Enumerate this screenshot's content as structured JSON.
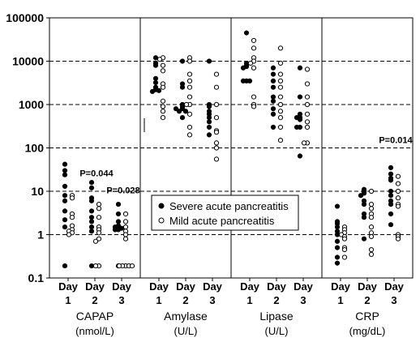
{
  "chart_data": {
    "type": "scatter",
    "y_scale": "log",
    "ylim": [
      0.1,
      100000
    ],
    "y_ticks": [
      "0.1",
      "1",
      "10",
      "100",
      "1000",
      "10000",
      "100000"
    ],
    "grid": "horizontal-dashed",
    "legend_position": "center",
    "legend": [
      {
        "name": "Severe acute pancreatitis",
        "marker": "filled-circle"
      },
      {
        "name": "Mild acute pancreatitis",
        "marker": "open-circle"
      }
    ],
    "day_labels": [
      {
        "top": "Day",
        "num": "1"
      },
      {
        "top": "Day",
        "num": "2"
      },
      {
        "top": "Day",
        "num": "3"
      }
    ],
    "groups": [
      {
        "name": "CAPAP",
        "unit": "(nmol/L)",
        "days": [
          {
            "severe": [
              42,
              30,
              24,
              13,
              8,
              6,
              3.5,
              2.2,
              1.5,
              0.19
            ],
            "mild": [
              8,
              7,
              3,
              2.5,
              1.6,
              1.3,
              1.2,
              1.1,
              1.0
            ]
          },
          {
            "severe": [
              16,
              12,
              7,
              6,
              3.5,
              2.5,
              2,
              1.5,
              1.2,
              0.19
            ],
            "mild": [
              5,
              4,
              2.5,
              1.5,
              1.3,
              1.1,
              0.8,
              0.7,
              0.19,
              0.19
            ]
          },
          {
            "severe": [
              5,
              3,
              2,
              1.6,
              1.5,
              1.4,
              1.3,
              1.3,
              0.19
            ],
            "mild": [
              3,
              2,
              1.5,
              1.2,
              1.0,
              0.8,
              0.19,
              0.19,
              0.19,
              0.19,
              0.19
            ]
          }
        ],
        "annotations": [
          {
            "text": "P=0.044",
            "day": 2,
            "value": 22
          },
          {
            "text": "P=0.028",
            "day": 3,
            "value": 9
          }
        ]
      },
      {
        "name": "Amylase",
        "unit": "(U/L)",
        "days": [
          {
            "severe": [
              12000,
              9000,
              8000,
              4000,
              3200,
              2500,
              2200,
              2000,
              2100
            ],
            "mild": [
              12000,
              11000,
              8000,
              6000,
              3000,
              2500,
              1200,
              900,
              700,
              500
            ]
          },
          {
            "severe": [
              10000,
              3000,
              2500,
              1000,
              900,
              800,
              700,
              700,
              800,
              500
            ],
            "mild": [
              12000,
              10000,
              5000,
              3500,
              2500,
              1500,
              1000,
              1000,
              600,
              300,
              200
            ]
          },
          {
            "severe": [
              10000,
              1000,
              900,
              700,
              600,
              500,
              400,
              300,
              200
            ],
            "mild": [
              5000,
              2500,
              1000,
              500,
              250,
              230,
              130,
              100,
              55
            ]
          }
        ],
        "annotations": []
      },
      {
        "name": "Lipase",
        "unit": "(U/L)",
        "days": [
          {
            "severe": [
              45000,
              9000,
              8000,
              7500,
              7000,
              3500,
              3500,
              3500
            ],
            "mild": [
              30000,
              20000,
              12000,
              10000,
              9000,
              7000,
              1500,
              1000,
              900
            ]
          },
          {
            "severe": [
              7000,
              5000,
              3500,
              2500,
              1500,
              1200,
              800,
              600,
              300
            ],
            "mild": [
              20000,
              9000,
              5000,
              3500,
              2500,
              1500,
              1000,
              700,
              500,
              300,
              150
            ]
          },
          {
            "severe": [
              7000,
              1500,
              600,
              500,
              500,
              450,
              300,
              300,
              65
            ],
            "mild": [
              6500,
              3000,
              1500,
              1000,
              600,
              400,
              300,
              130,
              130
            ]
          }
        ],
        "annotations": []
      },
      {
        "name": "CRP",
        "unit": "(mg/dL)",
        "days": [
          {
            "severe": [
              4.5,
              2,
              1.8,
              1.5,
              1.2,
              1.0,
              0.7,
              0.5,
              0.3,
              0.22
            ],
            "mild": [
              1.5,
              1.3,
              1.1,
              1.0,
              0.9,
              0.8,
              0.5,
              0.45,
              0.3
            ]
          },
          {
            "severe": [
              11,
              10,
              9,
              8,
              6,
              5,
              3,
              2.5,
              0.8
            ],
            "mild": [
              10,
              5,
              4,
              3,
              2.5,
              1.5,
              1.1,
              0.9,
              0.45,
              0.35
            ]
          },
          {
            "severe": [
              35,
              25,
              20,
              18,
              10,
              8,
              6,
              5,
              3,
              1.7
            ],
            "mild": [
              22,
              15,
              10,
              7,
              5,
              4.5,
              1.0,
              0.9,
              0.8
            ]
          }
        ],
        "annotations": [
          {
            "text": "P=0.014",
            "day": 3,
            "value": 130
          }
        ]
      }
    ]
  }
}
